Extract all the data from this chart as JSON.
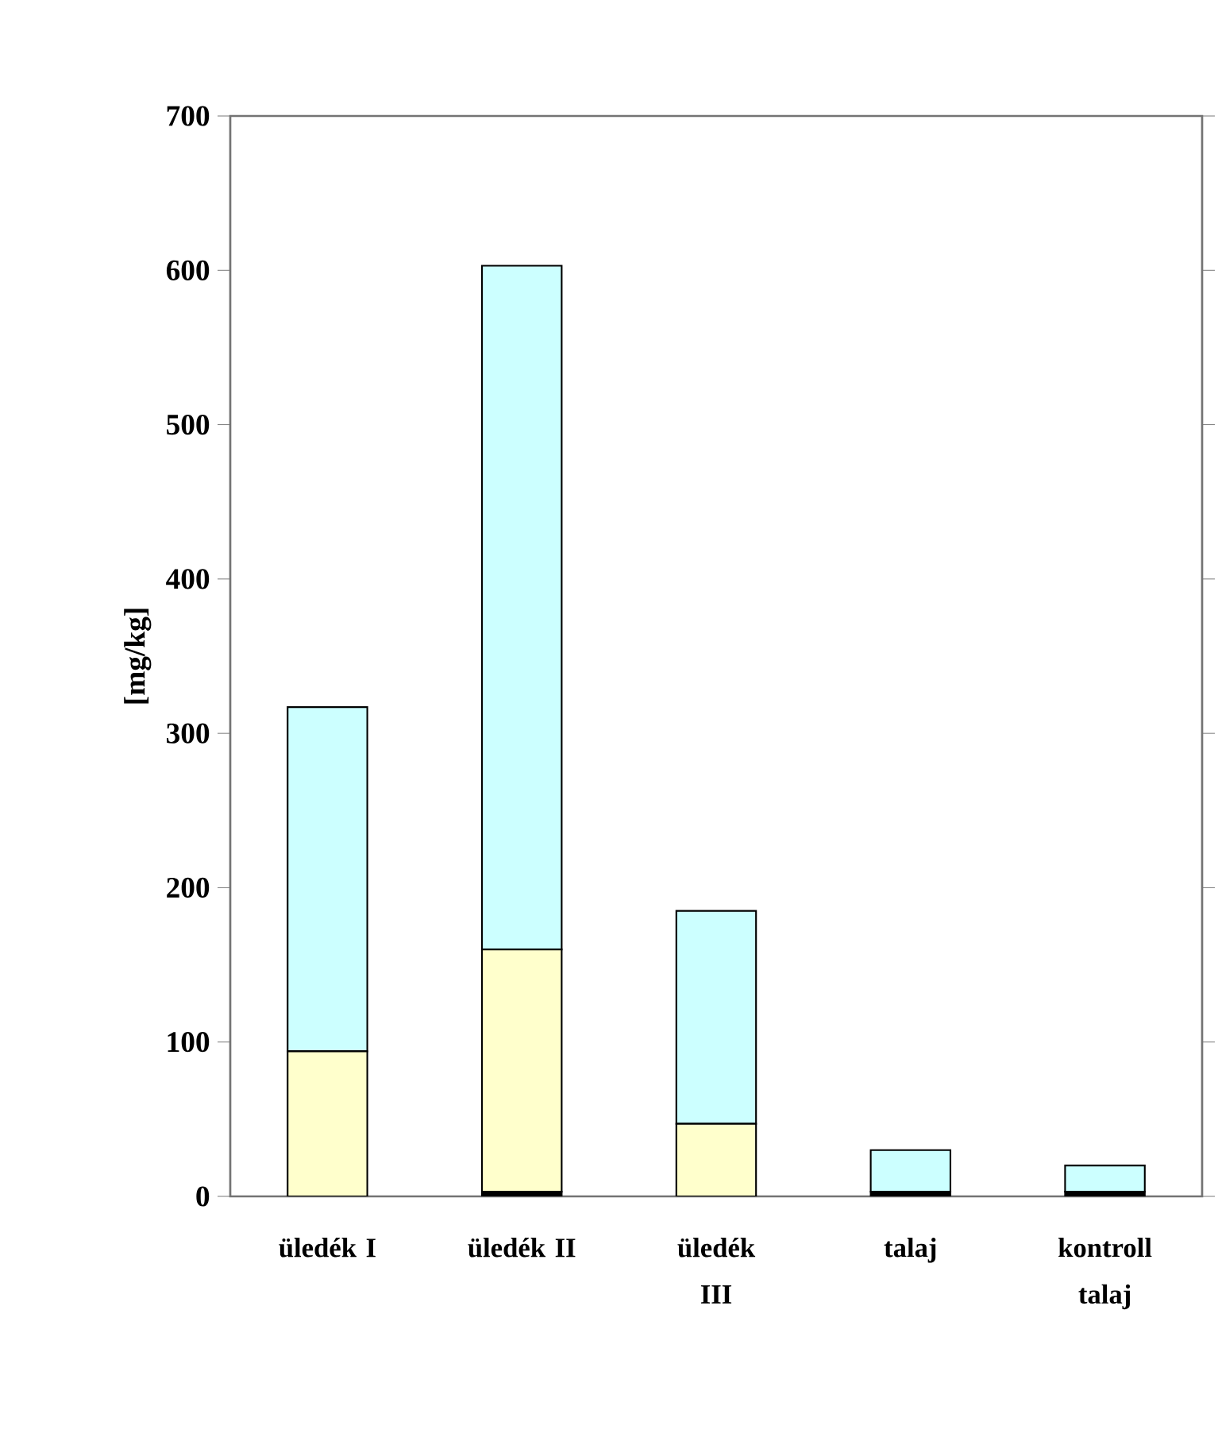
{
  "chart_data": {
    "type": "bar",
    "stacked": true,
    "ylabel": "[mg/kg]",
    "categories": [
      "üledék I",
      "üledék II",
      "üledék III",
      "talaj",
      "kontroll talaj"
    ],
    "series": [
      {
        "color": "#000000",
        "values": [
          0,
          3,
          0,
          3,
          3
        ]
      },
      {
        "color": "#ffffcc",
        "values": [
          94,
          157,
          47,
          0,
          0
        ]
      },
      {
        "color": "#ccffff",
        "values": [
          223,
          443,
          138,
          27,
          17
        ]
      }
    ],
    "ylim": [
      0,
      700
    ],
    "yticks": [
      0,
      100,
      200,
      300,
      400,
      500,
      600,
      700
    ],
    "grid": false
  }
}
